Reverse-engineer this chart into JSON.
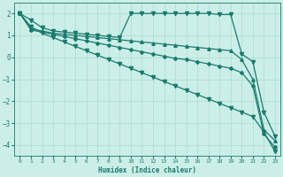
{
  "xlabel": "Humidex (Indice chaleur)",
  "bg_color": "#cceee8",
  "line_color": "#1a7a6e",
  "grid_color": "#aaddcc",
  "xlim": [
    -0.5,
    23.5
  ],
  "ylim": [
    -4.5,
    2.5
  ],
  "yticks": [
    -4,
    -3,
    -2,
    -1,
    0,
    1,
    2
  ],
  "xticks": [
    0,
    1,
    2,
    3,
    4,
    5,
    6,
    7,
    8,
    9,
    10,
    11,
    12,
    13,
    14,
    15,
    16,
    17,
    18,
    19,
    20,
    21,
    22,
    23
  ],
  "series": [
    {
      "x": [
        0,
        1,
        2,
        3,
        4,
        5,
        6,
        7,
        8,
        9,
        10,
        11,
        12,
        13,
        14,
        15,
        16,
        17,
        18,
        19,
        20,
        21,
        22,
        23
      ],
      "y": [
        2.0,
        1.7,
        1.35,
        1.2,
        1.15,
        1.1,
        1.05,
        1.0,
        0.95,
        0.9,
        2.0,
        2.0,
        2.0,
        2.0,
        2.0,
        2.0,
        2.0,
        2.0,
        1.95,
        1.95,
        0.15,
        -0.2,
        -2.5,
        -3.6
      ],
      "marker": "v",
      "markersize": 3,
      "lw": 0.9
    },
    {
      "x": [
        0,
        1,
        2,
        3,
        4,
        5,
        6,
        7,
        8,
        9,
        10,
        11,
        12,
        13,
        14,
        15,
        16,
        17,
        18,
        19,
        20,
        21,
        22,
        23
      ],
      "y": [
        2.0,
        1.3,
        1.2,
        1.1,
        1.05,
        1.0,
        0.95,
        0.9,
        0.85,
        0.8,
        0.75,
        0.7,
        0.65,
        0.6,
        0.55,
        0.5,
        0.45,
        0.4,
        0.35,
        0.3,
        -0.1,
        -1.0,
        -3.3,
        -3.8
      ],
      "marker": "^",
      "markersize": 2.5,
      "lw": 0.9
    },
    {
      "x": [
        0,
        1,
        2,
        3,
        4,
        5,
        6,
        7,
        8,
        9,
        10,
        11,
        12,
        13,
        14,
        15,
        16,
        17,
        18,
        19,
        20,
        21,
        22,
        23
      ],
      "y": [
        2.0,
        1.25,
        1.15,
        1.05,
        0.95,
        0.85,
        0.75,
        0.65,
        0.55,
        0.45,
        0.35,
        0.25,
        0.15,
        0.05,
        -0.05,
        -0.1,
        -0.2,
        -0.3,
        -0.4,
        -0.5,
        -0.7,
        -1.3,
        -3.5,
        -4.1
      ],
      "marker": "D",
      "markersize": 2,
      "lw": 0.9
    },
    {
      "x": [
        0,
        1,
        2,
        3,
        4,
        5,
        6,
        7,
        8,
        9,
        10,
        11,
        12,
        13,
        14,
        15,
        16,
        17,
        18,
        19,
        20,
        21,
        22,
        23
      ],
      "y": [
        2.0,
        1.4,
        1.1,
        0.9,
        0.7,
        0.5,
        0.3,
        0.1,
        -0.1,
        -0.3,
        -0.5,
        -0.7,
        -0.9,
        -1.1,
        -1.3,
        -1.5,
        -1.7,
        -1.9,
        -2.1,
        -2.3,
        -2.5,
        -2.7,
        -3.4,
        -4.3
      ],
      "marker": "v",
      "markersize": 3,
      "lw": 0.9
    }
  ]
}
